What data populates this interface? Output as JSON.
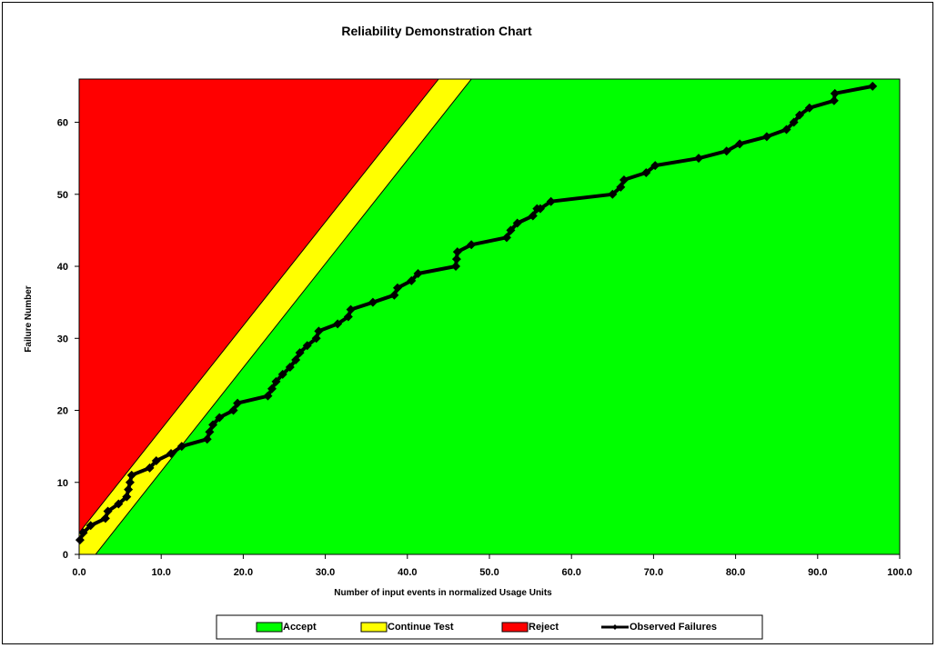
{
  "chart_data": {
    "type": "line",
    "title": "Reliability Demonstration Chart",
    "xlabel": "Number of input events in normalized Usage Units",
    "ylabel": "Failure Number",
    "xlim": [
      0,
      100
    ],
    "ylim": [
      0,
      66
    ],
    "x_ticks": [
      "0.0",
      "10.0",
      "20.0",
      "30.0",
      "40.0",
      "50.0",
      "60.0",
      "70.0",
      "80.0",
      "90.0",
      "100.0"
    ],
    "y_ticks": [
      "0",
      "10",
      "20",
      "30",
      "40",
      "50",
      "60"
    ],
    "regions": [
      {
        "name": "Accept",
        "color": "#00ff00"
      },
      {
        "name": "Continue Test",
        "color": "#ffff00",
        "boundary_low": [
          [
            2.0,
            0
          ],
          [
            47.8,
            66
          ]
        ],
        "boundary_high": [
          [
            0,
            3.0
          ],
          [
            43.8,
            66
          ]
        ]
      },
      {
        "name": "Reject",
        "color": "#ff0000"
      }
    ],
    "legend": {
      "position": "bottom",
      "entries": [
        "Accept",
        "Continue Test",
        "Reject",
        "Observed Failures"
      ]
    },
    "series": [
      {
        "name": "Observed Failures",
        "color": "#000000",
        "marker": "diamond",
        "x": [
          0.1,
          0.5,
          1.4,
          3.2,
          3.5,
          4.8,
          5.8,
          6.0,
          6.2,
          6.4,
          8.6,
          9.4,
          11.2,
          12.5,
          15.6,
          15.9,
          16.3,
          17.1,
          18.8,
          19.3,
          23.0,
          23.5,
          24.0,
          24.8,
          25.7,
          26.4,
          26.9,
          27.8,
          28.9,
          29.2,
          31.5,
          32.8,
          33.1,
          35.8,
          38.4,
          38.8,
          40.5,
          41.3,
          45.9,
          46.0,
          46.1,
          47.8,
          52.1,
          52.6,
          53.4,
          55.3,
          55.8,
          56.2,
          57.5,
          65.0,
          66.0,
          66.4,
          69.1,
          70.2,
          75.5,
          78.9,
          80.5,
          83.8,
          86.2,
          87.1,
          87.8,
          89.0,
          92.0,
          92.1,
          96.7
        ],
        "y": [
          2,
          3,
          4,
          5,
          6,
          7,
          8,
          9,
          10,
          11,
          12,
          13,
          14,
          15,
          16,
          17,
          18,
          19,
          20,
          21,
          22,
          23,
          24,
          25,
          26,
          27,
          28,
          29,
          30,
          31,
          32,
          33,
          34,
          35,
          36,
          37,
          38,
          39,
          40,
          41,
          42,
          43,
          44,
          45,
          46,
          47,
          48,
          48,
          49,
          50,
          51,
          52,
          53,
          54,
          55,
          56,
          57,
          58,
          59,
          60,
          61,
          62,
          63,
          64,
          65
        ]
      }
    ]
  }
}
